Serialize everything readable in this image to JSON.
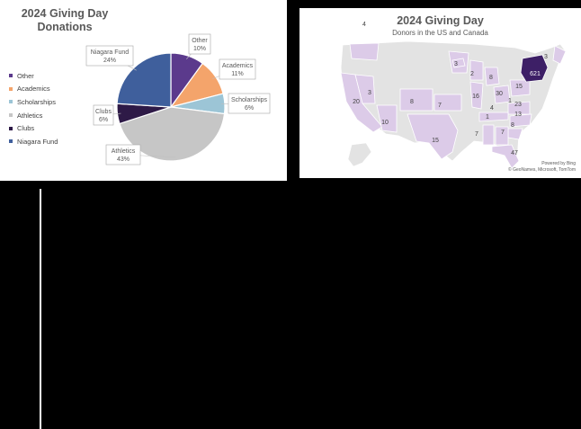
{
  "chart_data": [
    {
      "type": "pie",
      "title": "2024 Giving Day Donations",
      "legend_position": "left",
      "slices": [
        {
          "name": "Other",
          "value": 10,
          "label": "10%",
          "color": "#5b3a8c"
        },
        {
          "name": "Academics",
          "value": 11,
          "label": "11%",
          "color": "#f4a46b"
        },
        {
          "name": "Scholarships",
          "value": 6,
          "label": "6%",
          "color": "#9cc5d6"
        },
        {
          "name": "Athletics",
          "value": 43,
          "label": "43%",
          "color": "#c6c6c6"
        },
        {
          "name": "Clubs",
          "value": 6,
          "label": "6%",
          "color": "#2e1a47"
        },
        {
          "name": "Niagara Fund",
          "value": 24,
          "label": "24%",
          "color": "#3f5f9c"
        }
      ]
    },
    {
      "type": "map",
      "title": "2024 Giving Day",
      "subtitle": "Donors in the US and Canada",
      "regions": [
        {
          "label": "4"
        },
        {
          "label": "3"
        },
        {
          "label": "2"
        },
        {
          "label": "3"
        },
        {
          "label": "20"
        },
        {
          "label": "3"
        },
        {
          "label": "8"
        },
        {
          "label": "7"
        },
        {
          "label": "16"
        },
        {
          "label": "8"
        },
        {
          "label": "30"
        },
        {
          "label": "15"
        },
        {
          "label": "1"
        },
        {
          "label": "23"
        },
        {
          "label": "4"
        },
        {
          "label": "1"
        },
        {
          "label": "13"
        },
        {
          "label": "8"
        },
        {
          "label": "10"
        },
        {
          "label": "7"
        },
        {
          "label": "7"
        },
        {
          "label": "15"
        },
        {
          "label": "47"
        },
        {
          "label": "621"
        }
      ]
    }
  ],
  "map_credits": {
    "powered": "Powered by Bing",
    "copyright": "© GeoNames, Microsoft, TomTom"
  }
}
